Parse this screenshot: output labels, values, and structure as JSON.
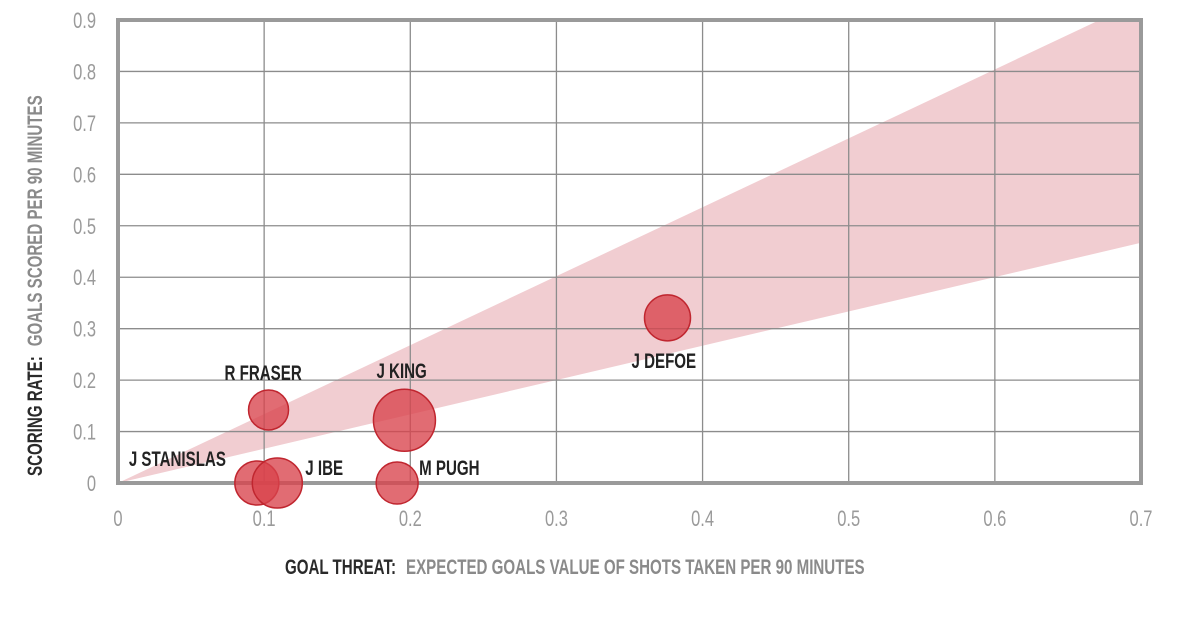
{
  "chart_data": {
    "type": "scatter",
    "xlabel_bold": "GOAL THREAT:",
    "xlabel_rest": "EXPECTED GOALS VALUE OF SHOTS TAKEN PER 90 MINUTES",
    "ylabel_bold": "SCORING RATE:",
    "ylabel_rest": "GOALS SCORED PER 90 MINUTES",
    "xlim": [
      0,
      0.7
    ],
    "ylim": [
      0,
      0.9
    ],
    "x_ticks": [
      "0",
      "0.1",
      "0.2",
      "0.3",
      "0.4",
      "0.5",
      "0.6",
      "0.7"
    ],
    "y_ticks": [
      "0",
      "0.1",
      "0.2",
      "0.3",
      "0.4",
      "0.5",
      "0.6",
      "0.7",
      "0.8",
      "0.9"
    ],
    "grid": true,
    "band": {
      "lower_slope": 0.667,
      "upper_slope": 1.34,
      "color": "#f1cdd1"
    },
    "point_color": "#d9434b",
    "points": [
      {
        "name": "J STANISLAS",
        "x": 0.095,
        "y": 0.0,
        "size": 22
      },
      {
        "name": "J IBE",
        "x": 0.109,
        "y": 0.0,
        "size": 25
      },
      {
        "name": "R FRASER",
        "x": 0.103,
        "y": 0.142,
        "size": 20
      },
      {
        "name": "J KING",
        "x": 0.196,
        "y": 0.122,
        "size": 31
      },
      {
        "name": "M PUGH",
        "x": 0.191,
        "y": 0.0,
        "size": 21
      },
      {
        "name": "J DEFOE",
        "x": 0.376,
        "y": 0.321,
        "size": 23
      }
    ]
  }
}
